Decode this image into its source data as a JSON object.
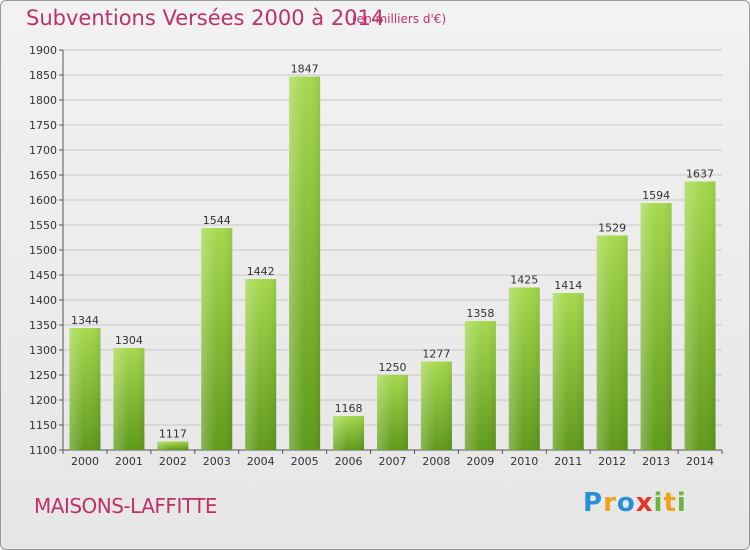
{
  "header": {
    "title": "Subventions Versées 2000 à 2014",
    "subtitle": "(en milliers d'€)"
  },
  "footer": {
    "commune": "MAISONS-LAFFITTE",
    "logo": "Proxiti"
  },
  "colors": {
    "title": "#c0306a",
    "bar_light": "#a6d94e",
    "bar_dark": "#5f9a1a"
  },
  "chart_data": {
    "type": "bar",
    "title": "Subventions Versées 2000 à 2014",
    "subtitle": "(en milliers d'€)",
    "xlabel": "",
    "ylabel": "",
    "categories": [
      "2000",
      "2001",
      "2002",
      "2003",
      "2004",
      "2005",
      "2006",
      "2007",
      "2008",
      "2009",
      "2010",
      "2011",
      "2012",
      "2013",
      "2014"
    ],
    "values": [
      1344,
      1304,
      1117,
      1544,
      1442,
      1847,
      1168,
      1250,
      1277,
      1358,
      1425,
      1414,
      1529,
      1594,
      1637
    ],
    "ylim": [
      1100,
      1900
    ],
    "yticks": [
      1100,
      1150,
      1200,
      1250,
      1300,
      1350,
      1400,
      1450,
      1500,
      1550,
      1600,
      1650,
      1700,
      1750,
      1800,
      1850,
      1900
    ],
    "grid": true,
    "legend": "none"
  }
}
